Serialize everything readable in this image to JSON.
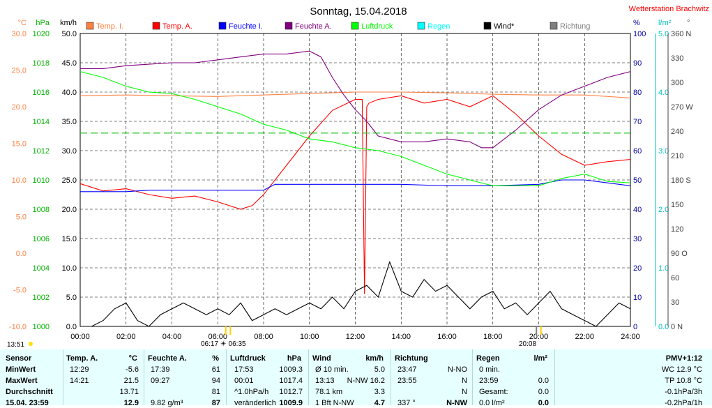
{
  "title": "Sonntag, 15.04.2018",
  "station": "Wetterstation Brachwitz",
  "axes": {
    "left": [
      {
        "unit": "°C",
        "color": "#ff8040",
        "ticks": [
          "30.0",
          "25.0",
          "20.0",
          "15.0",
          "10.0",
          "5.0",
          "0.0",
          "-5.0",
          "-10.0"
        ]
      },
      {
        "unit": "hPa",
        "color": "#00b000",
        "ticks": [
          "1020",
          "1018",
          "1016",
          "1014",
          "1012",
          "1010",
          "1008",
          "1006",
          "1004",
          "1002",
          "1000"
        ]
      },
      {
        "unit": "km/h",
        "color": "#000000",
        "ticks": [
          "50.0",
          "45.0",
          "40.0",
          "35.0",
          "30.0",
          "25.0",
          "20.0",
          "15.0",
          "10.0",
          "5.0",
          "0.0"
        ]
      }
    ],
    "right": [
      {
        "unit": "%",
        "color": "#0000a0",
        "ticks": [
          "100",
          "90",
          "80",
          "70",
          "60",
          "50",
          "40",
          "30",
          "20",
          "10",
          "0"
        ]
      },
      {
        "unit": "l/m²",
        "color": "#00c0c0",
        "ticks": [
          "5.0",
          "4.0",
          "3.0",
          "2.0",
          "1.0",
          "0.0"
        ]
      },
      {
        "unit": "°",
        "color": "#404040",
        "ticks": [
          "360 N",
          "330",
          "300",
          "270 W",
          "240",
          "210",
          "180 S",
          "150",
          "120",
          "90 O",
          "60",
          "30",
          "0 N"
        ]
      }
    ],
    "x_ticks": [
      "00:00",
      "02:00",
      "04:00",
      "06:00",
      "08:00",
      "10:00",
      "12:00",
      "14:00",
      "16:00",
      "18:00",
      "20:00",
      "22:00",
      "24:00"
    ]
  },
  "legend": [
    {
      "label": "Temp. I.",
      "color": "#ff8040"
    },
    {
      "label": "Temp. A.",
      "color": "#ff0000"
    },
    {
      "label": "Feuchte I.",
      "color": "#0000ff"
    },
    {
      "label": "Feuchte A.",
      "color": "#800080"
    },
    {
      "label": "Luftdruck",
      "color": "#00ff00"
    },
    {
      "label": "Regen",
      "color": "#00ffff"
    },
    {
      "label": "Wind*",
      "color": "#000000"
    },
    {
      "label": "Richtung",
      "color": "#808080"
    }
  ],
  "sun": {
    "rise_marker": "06:17 ☀ 06:35",
    "set_marker": "20:08",
    "left_time": "13:51"
  },
  "chart_data": {
    "type": "line",
    "title": "Sonntag, 15.04.2018",
    "x_unit": "hour of day",
    "xlim": [
      0,
      24
    ],
    "series": [
      {
        "name": "Temp. I.",
        "unit": "°C",
        "ylim": [
          -10,
          30
        ],
        "x": [
          0,
          2,
          4,
          6,
          8,
          10,
          12,
          14,
          16,
          18,
          20,
          22,
          24
        ],
        "y": [
          21.5,
          21.6,
          21.5,
          21.4,
          21.6,
          21.8,
          22.0,
          22.0,
          21.9,
          21.7,
          21.6,
          21.6,
          21.2
        ]
      },
      {
        "name": "Temp. A.",
        "unit": "°C",
        "ylim": [
          -10,
          30
        ],
        "x": [
          0,
          1,
          2,
          3,
          4,
          5,
          6,
          7,
          7.5,
          8,
          9,
          10,
          11,
          12,
          12.3,
          12.4,
          12.5,
          12.6,
          13,
          14,
          15,
          16,
          17,
          18,
          19,
          20,
          21,
          22,
          23,
          24
        ],
        "y": [
          9.5,
          8.5,
          8.8,
          8.0,
          7.5,
          7.8,
          7.0,
          6.0,
          6.5,
          8.0,
          12.0,
          16.0,
          19.5,
          21.0,
          21.0,
          -5.6,
          20.0,
          20.5,
          21.0,
          21.5,
          20.5,
          21.0,
          20.0,
          21.5,
          19.0,
          16.0,
          13.5,
          12.0,
          12.5,
          12.8
        ]
      },
      {
        "name": "Feuchte I.",
        "unit": "%",
        "ylim": [
          0,
          100
        ],
        "x": [
          0,
          2,
          3,
          8,
          8.5,
          12,
          12.5,
          14,
          16,
          18,
          20,
          21,
          22,
          23,
          24
        ],
        "y": [
          46,
          46,
          46.5,
          46.5,
          48.5,
          48.5,
          48.5,
          48.5,
          48,
          48,
          48.5,
          50,
          50,
          49,
          48
        ]
      },
      {
        "name": "Feuchte A.",
        "unit": "%",
        "ylim": [
          0,
          100
        ],
        "x": [
          0,
          1,
          2,
          3,
          4,
          5,
          6,
          7,
          8,
          9,
          10,
          10.5,
          11,
          11.5,
          12,
          12.5,
          13,
          14,
          15,
          16,
          17,
          17.5,
          18,
          19,
          20,
          21,
          22,
          23,
          24
        ],
        "y": [
          88,
          88,
          89,
          89.5,
          90,
          90,
          91,
          92,
          93,
          93,
          94,
          92,
          85,
          79,
          74,
          70,
          65,
          63,
          63,
          64,
          63,
          61,
          61,
          67,
          74,
          79,
          82,
          85,
          87
        ]
      },
      {
        "name": "Luftdruck",
        "unit": "hPa",
        "ylim": [
          1000,
          1020
        ],
        "x": [
          0,
          1,
          2,
          3,
          4,
          5,
          6,
          7,
          8,
          9,
          10,
          11,
          12,
          13,
          14,
          15,
          16,
          17,
          18,
          19,
          20,
          21,
          22,
          23,
          24
        ],
        "y": [
          1017.4,
          1017.0,
          1016.4,
          1016.0,
          1015.9,
          1015.5,
          1015.0,
          1014.5,
          1013.8,
          1013.4,
          1012.8,
          1012.6,
          1012.2,
          1012.0,
          1011.6,
          1011.0,
          1010.4,
          1010.0,
          1009.6,
          1009.6,
          1009.6,
          1010.1,
          1010.4,
          1009.9,
          1009.8
        ]
      },
      {
        "name": "Luftdruck Mittel",
        "unit": "hPa",
        "ylim": [
          1000,
          1020
        ],
        "x": [
          0,
          24
        ],
        "y": [
          1013.2,
          1013.2
        ]
      },
      {
        "name": "Wind*",
        "unit": "km/h",
        "ylim": [
          0,
          50
        ],
        "x": [
          0,
          0.5,
          1,
          1.5,
          2,
          2.5,
          3,
          3.5,
          4,
          4.5,
          5,
          5.5,
          6,
          6.5,
          7,
          7.5,
          8,
          8.5,
          9,
          9.5,
          10,
          10.5,
          11,
          11.5,
          12,
          12.5,
          13,
          13.5,
          14,
          14.5,
          15,
          15.5,
          16,
          16.5,
          17,
          17.5,
          18,
          18.5,
          19,
          19.5,
          20,
          20.5,
          21,
          21.5,
          22,
          22.5,
          23,
          23.5,
          24
        ],
        "y": [
          0,
          0,
          1,
          3,
          4,
          1,
          0,
          2,
          3,
          4,
          3,
          2,
          3,
          2,
          4,
          1,
          2,
          3,
          2,
          3,
          4,
          3,
          5,
          3,
          6,
          7,
          5,
          11,
          6,
          5,
          8,
          6,
          7,
          5,
          3,
          5,
          6,
          3,
          4,
          2,
          4,
          6,
          3,
          2,
          1,
          0,
          2,
          4,
          3
        ]
      }
    ]
  },
  "table": {
    "columns": [
      {
        "h1": "Sensor",
        "h2": ""
      },
      {
        "h1": "Temp. A.",
        "h2": "°C"
      },
      {
        "h1": "Feuchte A.",
        "h2": "%"
      },
      {
        "h1": "Luftdruck",
        "h2": "hPa"
      },
      {
        "h1": "Wind",
        "h2": "km/h"
      },
      {
        "h1": "Richtung",
        "h2": ""
      },
      {
        "h1": "Regen",
        "h2": "l/m²"
      },
      {
        "h1": "PMV+1:12",
        "h2": ""
      }
    ],
    "rows": [
      [
        "MinWert",
        "12:29",
        "-5.6",
        "17:39",
        "61",
        "17:53",
        "1009.3",
        "Ø 10 min.",
        "5.0",
        "23:47",
        "N-NO",
        "0 min.",
        "",
        "WC 12.9 °C"
      ],
      [
        "MaxWert",
        "14:21",
        "21.5",
        "09:27",
        "94",
        "00:01",
        "1017.4",
        "13:13",
        "N-NW 16.2",
        "23:55",
        "N",
        "23:59",
        "0.0",
        "TP 10.8 °C"
      ],
      [
        "Durchschnitt",
        "",
        "13.71",
        "",
        "81",
        "^1.0hPa/h",
        "1012.7",
        "78.1 km",
        "3.3",
        "",
        "N",
        "Gesamt:",
        "0.0",
        "-0.1hPa/3h"
      ],
      [
        "15.04. 23:59",
        "",
        "12.9",
        "9.82 g/m³",
        "87",
        "veränderlich",
        "1009.9",
        "1 Bft N-NW",
        "4.7",
        "337 °",
        "N-NW",
        "0.0 l/m²",
        "0.0",
        "-0.2hPa/1h"
      ]
    ]
  }
}
